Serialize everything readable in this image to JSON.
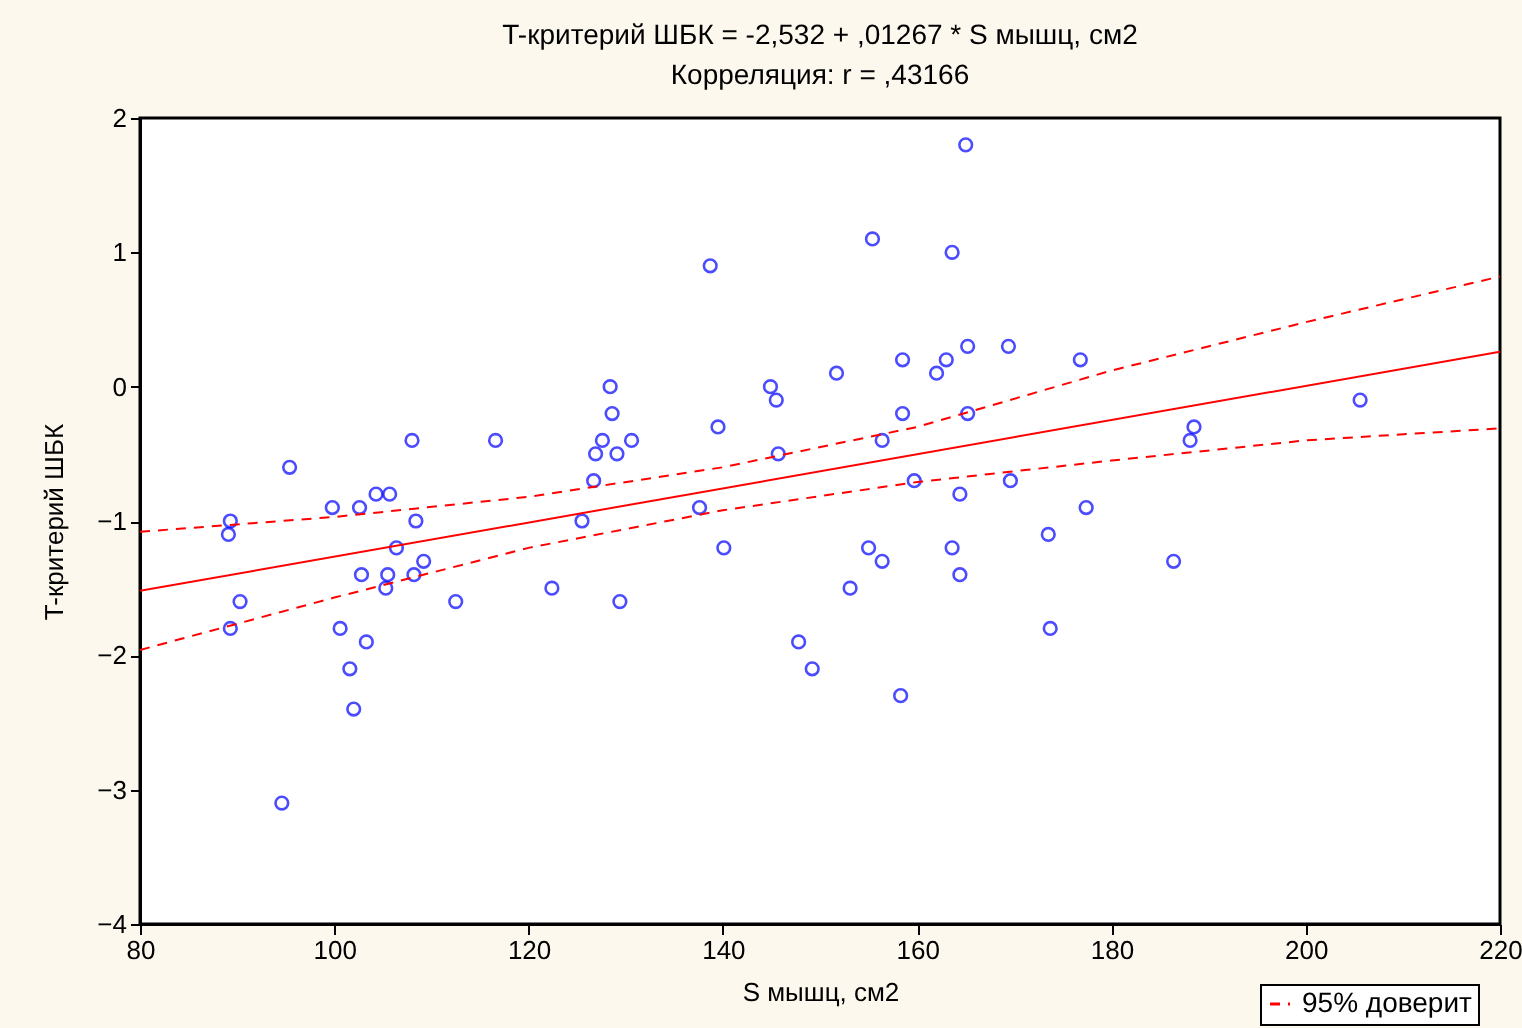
{
  "chart_data": {
    "type": "scatter",
    "title": "T-критерий ШБК = -2,532 + ,01267 * S мышц, см2",
    "subtitle": "Корреляция: r =  ,43166",
    "xlabel": "S мышц, см2",
    "ylabel": "T-критерий ШБК",
    "xlim": [
      80,
      220
    ],
    "xticks": [
      80,
      100,
      120,
      140,
      160,
      180,
      200,
      220
    ],
    "ylim": [
      -4,
      2
    ],
    "yticks": [
      -4,
      -3,
      -2,
      -1,
      0,
      1,
      2
    ],
    "grid": false,
    "legend": "bottom right",
    "marker": "circle",
    "series": [
      {
        "color": "#0000ff",
        "x": [
          89.1,
          89.3,
          89.3,
          90.3,
          95.4,
          94.6,
          99.8,
          100.6,
          101.6,
          102.0,
          102.6,
          102.8,
          103.3,
          104.3,
          105.3,
          105.5,
          105.7,
          106.4,
          108.0,
          108.4,
          108.2,
          109.2,
          112.5,
          116.6,
          122.4,
          125.5,
          126.7,
          126.9,
          127.6,
          128.4,
          128.6,
          129.1,
          129.4,
          130.6,
          137.6,
          138.7,
          139.5,
          140.1,
          144.9,
          145.5,
          145.7,
          147.8,
          149.2,
          151.7,
          153.1,
          155.0,
          155.4,
          156.4,
          156.4,
          158.3,
          158.5,
          158.5,
          159.7,
          162.0,
          163.0,
          163.6,
          163.6,
          164.4,
          164.4,
          165.2,
          165.2,
          165.0,
          169.6,
          169.4,
          173.5,
          173.7,
          176.8,
          177.4,
          186.4,
          188.1,
          188.5,
          205.6
        ],
        "values": [
          -1.1,
          -1.0,
          -1.8,
          -1.6,
          -0.6,
          -3.1,
          -0.9,
          -1.8,
          -2.1,
          -2.4,
          -0.9,
          -1.4,
          -1.9,
          -0.8,
          -1.5,
          -1.4,
          -0.8,
          -1.2,
          -0.4,
          -1.0,
          -1.4,
          -1.3,
          -1.6,
          -0.4,
          -1.5,
          -1.0,
          -0.7,
          -0.5,
          -0.4,
          0.0,
          -0.2,
          -0.5,
          -1.6,
          -0.4,
          -0.9,
          0.9,
          -0.3,
          -1.2,
          0.0,
          -0.1,
          -0.5,
          -1.9,
          -2.1,
          0.1,
          -1.5,
          -1.2,
          1.1,
          -0.4,
          -1.3,
          -2.3,
          0.2,
          -0.2,
          -0.7,
          0.1,
          0.2,
          1.0,
          -1.2,
          -1.4,
          -0.8,
          -0.2,
          0.3,
          1.8,
          -0.7,
          0.3,
          -1.1,
          -1.8,
          0.2,
          -0.9,
          -1.3,
          -0.4,
          -0.3,
          -0.1
        ]
      },
      {
        "type": "line",
        "color": "#ff0000",
        "line_style": "solid",
        "marker": "none",
        "x": [
          80,
          220
        ],
        "values": [
          -1.52,
          0.26
        ]
      },
      {
        "type": "line",
        "name": "95% доверит",
        "color": "#ff0000",
        "line_style": "dashed",
        "marker": "none",
        "x": [
          80,
          100,
          120,
          140,
          160,
          180,
          200,
          220
        ],
        "values": [
          -1.08,
          -0.97,
          -0.82,
          -0.6,
          -0.3,
          0.12,
          0.48,
          0.82
        ]
      },
      {
        "type": "line",
        "color": "#ff0000",
        "line_style": "dashed",
        "marker": "none",
        "x": [
          80,
          100,
          120,
          140,
          160,
          180,
          200,
          220
        ],
        "values": [
          -1.96,
          -1.57,
          -1.2,
          -0.92,
          -0.71,
          -0.55,
          -0.4,
          -0.31
        ]
      }
    ]
  }
}
